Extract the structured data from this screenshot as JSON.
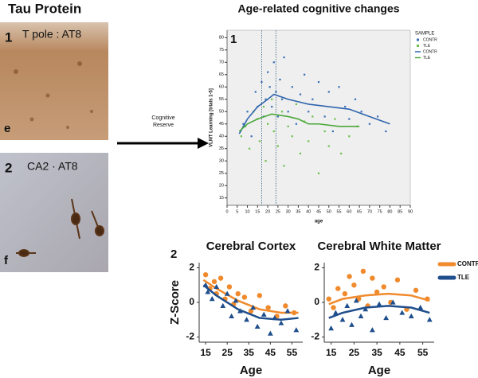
{
  "panels": {
    "title": "Tau Protein",
    "image_1": {
      "label": "1",
      "caption": "T pole : AT8",
      "letter": "e"
    },
    "image_2": {
      "label": "2",
      "caption": "CA2 · AT8",
      "letter": "f"
    },
    "arrow_text": [
      "Cognitive",
      "Reserve"
    ]
  },
  "chart_data": [
    {
      "type": "scatter",
      "title": "Age-related cognitive changes",
      "label": "1",
      "xlabel": "age",
      "ylabel": "VLMT Learning [trials 1-5]",
      "legend_title": "SAMPLE",
      "xlim": [
        0,
        90
      ],
      "xticks": [
        0,
        5,
        10,
        15,
        20,
        25,
        30,
        35,
        40,
        45,
        50,
        55,
        60,
        65,
        70,
        75,
        80,
        85,
        90
      ],
      "ylim": [
        12,
        83
      ],
      "yticks": [
        15,
        20,
        25,
        30,
        35,
        40,
        45,
        50,
        55,
        60,
        65,
        70,
        75,
        80
      ],
      "vlines": [
        17,
        24
      ],
      "series": [
        {
          "name": "CONTR",
          "color": "#3a6fb5",
          "mode": "markers",
          "x": [
            8,
            10,
            12,
            14,
            15,
            17,
            18,
            19,
            20,
            21,
            22,
            23,
            24,
            25,
            26,
            27,
            28,
            30,
            32,
            34,
            36,
            38,
            40,
            42,
            45,
            48,
            50,
            52,
            55,
            58,
            60,
            63,
            66,
            70,
            74,
            78
          ],
          "values": [
            45,
            50,
            40,
            58,
            52,
            62,
            48,
            55,
            66,
            60,
            52,
            70,
            58,
            48,
            63,
            55,
            72,
            50,
            60,
            45,
            57,
            65,
            50,
            55,
            62,
            48,
            58,
            42,
            60,
            52,
            47,
            55,
            50,
            45,
            48,
            42
          ]
        },
        {
          "name": "TLE",
          "color": "#6cbf4a",
          "mode": "markers",
          "x": [
            7,
            9,
            11,
            13,
            15,
            16,
            18,
            19,
            20,
            22,
            23,
            25,
            27,
            28,
            30,
            32,
            34,
            36,
            38,
            40,
            42,
            45,
            48,
            50,
            53,
            56,
            60,
            64
          ],
          "values": [
            40,
            44,
            35,
            50,
            47,
            38,
            52,
            30,
            45,
            55,
            42,
            36,
            50,
            28,
            44,
            40,
            53,
            33,
            46,
            38,
            48,
            25,
            42,
            36,
            47,
            33,
            40,
            44
          ]
        },
        {
          "name": "CONTR",
          "color": "#2f64ad",
          "mode": "line",
          "x": [
            6,
            10,
            15,
            20,
            23,
            30,
            40,
            50,
            60,
            70,
            80
          ],
          "values": [
            41,
            47,
            52,
            55,
            57,
            55,
            53,
            52,
            51,
            48,
            45
          ]
        },
        {
          "name": "TLE",
          "color": "#4aa83a",
          "mode": "line",
          "x": [
            6,
            10,
            15,
            22,
            30,
            35,
            40,
            45,
            55,
            65
          ],
          "values": [
            42,
            45,
            47,
            49,
            48,
            47,
            45,
            45,
            44,
            44
          ]
        }
      ]
    },
    {
      "type": "scatter",
      "title": "Cerebral Cortex",
      "label": "2",
      "xlabel": "Age",
      "ylabel": "Z-Score",
      "legend": false,
      "xlim": [
        12,
        60
      ],
      "xticks": [
        15,
        25,
        35,
        45,
        55
      ],
      "ylim": [
        -2.3,
        2.3
      ],
      "yticks": [
        2,
        0,
        -2
      ],
      "series": [
        {
          "name": "CONTR",
          "color": "#f08a2c",
          "marker": "circle",
          "x": [
            15,
            17,
            19,
            20,
            22,
            24,
            26,
            28,
            30,
            33,
            36,
            40,
            44,
            48,
            52,
            56
          ],
          "values": [
            1.6,
            0.8,
            1.2,
            0.5,
            1.4,
            0.2,
            0.9,
            -0.1,
            0.5,
            0.3,
            -0.5,
            0.4,
            -0.3,
            -0.8,
            -0.2,
            -0.6
          ],
          "fit_x": [
            14,
            20,
            30,
            40,
            50,
            58
          ],
          "fit_values": [
            1.3,
            0.8,
            0.1,
            -0.4,
            -0.6,
            -0.6
          ]
        },
        {
          "name": "TLE",
          "color": "#1f4e8c",
          "marker": "triangle",
          "x": [
            15,
            16,
            18,
            20,
            23,
            25,
            27,
            29,
            31,
            34,
            37,
            39,
            42,
            45,
            47,
            50,
            53,
            57
          ],
          "values": [
            1.0,
            0.6,
            0.2,
            0.9,
            -0.2,
            0.5,
            -0.8,
            0.1,
            -0.5,
            -1.0,
            -0.3,
            -1.4,
            -0.7,
            -1.8,
            -0.9,
            -1.2,
            -0.5,
            -1.6
          ],
          "fit_x": [
            14,
            20,
            30,
            40,
            50,
            58
          ],
          "fit_values": [
            1.0,
            0.4,
            -0.4,
            -0.9,
            -1.0,
            -0.9
          ]
        }
      ]
    },
    {
      "type": "scatter",
      "title": "Cerebral White Matter",
      "xlabel": "Age",
      "legend": true,
      "xlim": [
        12,
        60
      ],
      "xticks": [
        15,
        25,
        35,
        45,
        55
      ],
      "ylim": [
        -2.3,
        2.3
      ],
      "yticks": [
        2,
        0,
        -2
      ],
      "series": [
        {
          "name": "CONTR",
          "color": "#f08a2c",
          "marker": "circle",
          "x": [
            14,
            16,
            18,
            21,
            23,
            25,
            27,
            29,
            31,
            33,
            35,
            38,
            41,
            44,
            48,
            52,
            57
          ],
          "values": [
            0.2,
            -0.3,
            0.8,
            0.5,
            1.5,
            1.0,
            0.2,
            1.8,
            -0.2,
            1.4,
            0.6,
            0.9,
            0.0,
            1.3,
            -0.4,
            0.7,
            0.2
          ],
          "fit_x": [
            14,
            20,
            30,
            40,
            50,
            58
          ],
          "fit_values": [
            -0.1,
            0.2,
            0.4,
            0.5,
            0.4,
            0.1
          ]
        },
        {
          "name": "TLE",
          "color": "#1f4e8c",
          "marker": "triangle",
          "x": [
            15,
            17,
            20,
            22,
            24,
            26,
            28,
            30,
            33,
            36,
            39,
            42,
            46,
            50,
            54,
            58
          ],
          "values": [
            -1.5,
            -0.6,
            -1.0,
            -0.2,
            -1.3,
            0.1,
            -0.8,
            -0.4,
            -1.6,
            -0.1,
            -0.9,
            0.0,
            -0.6,
            -0.8,
            -0.3,
            -1.0
          ],
          "fit_x": [
            14,
            20,
            30,
            40,
            50,
            58
          ],
          "fit_values": [
            -0.9,
            -0.6,
            -0.3,
            -0.2,
            -0.3,
            -0.6
          ]
        }
      ]
    }
  ]
}
